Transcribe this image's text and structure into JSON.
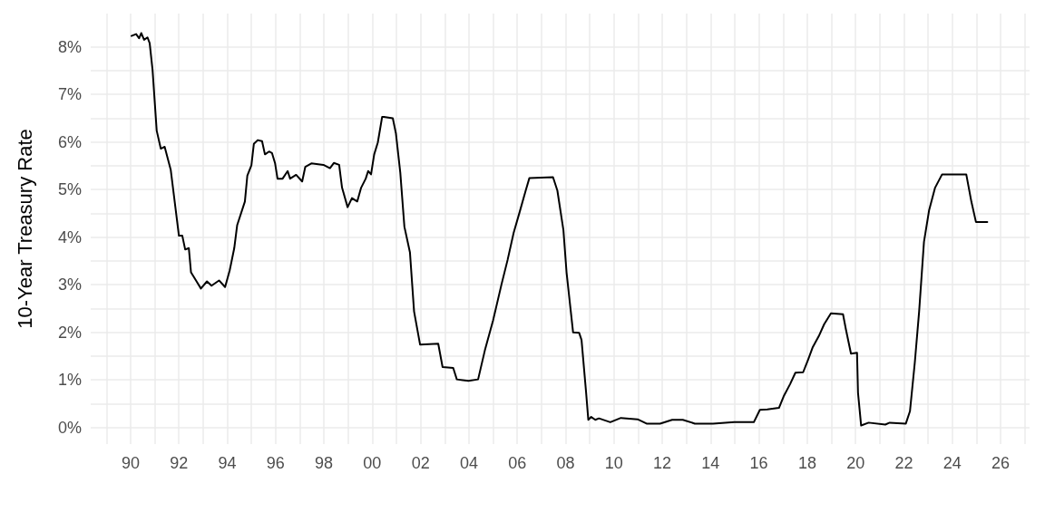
{
  "chart_data": {
    "type": "line",
    "ylabel": "10-Year Treasury Rate",
    "grid": true,
    "marker": "none",
    "line_style": "solid",
    "xlim": [
      1988.35,
      2027.2
    ],
    "ylim": [
      -0.35,
      8.7
    ],
    "xticks": [
      {
        "value": 1989,
        "label": null
      },
      {
        "value": 1990,
        "label": "90"
      },
      {
        "value": 1991,
        "label": null
      },
      {
        "value": 1992,
        "label": "92"
      },
      {
        "value": 1993,
        "label": null
      },
      {
        "value": 1994,
        "label": "94"
      },
      {
        "value": 1995,
        "label": null
      },
      {
        "value": 1996,
        "label": "96"
      },
      {
        "value": 1997,
        "label": null
      },
      {
        "value": 1998,
        "label": "98"
      },
      {
        "value": 1999,
        "label": null
      },
      {
        "value": 2000,
        "label": "00"
      },
      {
        "value": 2001,
        "label": null
      },
      {
        "value": 2002,
        "label": "02"
      },
      {
        "value": 2003,
        "label": null
      },
      {
        "value": 2004,
        "label": "04"
      },
      {
        "value": 2005,
        "label": null
      },
      {
        "value": 2006,
        "label": "06"
      },
      {
        "value": 2007,
        "label": null
      },
      {
        "value": 2008,
        "label": "08"
      },
      {
        "value": 2009,
        "label": null
      },
      {
        "value": 2010,
        "label": "10"
      },
      {
        "value": 2011,
        "label": null
      },
      {
        "value": 2012,
        "label": "12"
      },
      {
        "value": 2013,
        "label": null
      },
      {
        "value": 2014,
        "label": "14"
      },
      {
        "value": 2015,
        "label": null
      },
      {
        "value": 2016,
        "label": "16"
      },
      {
        "value": 2017,
        "label": null
      },
      {
        "value": 2018,
        "label": "18"
      },
      {
        "value": 2019,
        "label": null
      },
      {
        "value": 2020,
        "label": "20"
      },
      {
        "value": 2021,
        "label": null
      },
      {
        "value": 2022,
        "label": "22"
      },
      {
        "value": 2023,
        "label": null
      },
      {
        "value": 2024,
        "label": "24"
      },
      {
        "value": 2025,
        "label": null
      },
      {
        "value": 2026,
        "label": "26"
      },
      {
        "value": 2027,
        "label": null
      }
    ],
    "yticks": [
      {
        "value": 0,
        "label": "0%"
      },
      {
        "value": 0.5,
        "label": null
      },
      {
        "value": 1,
        "label": "1%"
      },
      {
        "value": 1.5,
        "label": null
      },
      {
        "value": 2,
        "label": "2%"
      },
      {
        "value": 2.5,
        "label": null
      },
      {
        "value": 3,
        "label": "3%"
      },
      {
        "value": 3.5,
        "label": null
      },
      {
        "value": 4,
        "label": "4%"
      },
      {
        "value": 4.5,
        "label": null
      },
      {
        "value": 5,
        "label": "5%"
      },
      {
        "value": 5.5,
        "label": null
      },
      {
        "value": 6,
        "label": "6%"
      },
      {
        "value": 6.5,
        "label": null
      },
      {
        "value": 7,
        "label": "7%"
      },
      {
        "value": 7.5,
        "label": null
      },
      {
        "value": 8,
        "label": "8%"
      }
    ],
    "series": [
      {
        "color": "#000000",
        "x": [
          1990.04,
          1990.23,
          1990.35,
          1990.44,
          1990.56,
          1990.7,
          1990.79,
          1990.91,
          1991.08,
          1991.25,
          1991.41,
          1991.66,
          1992.0,
          1992.14,
          1992.26,
          1992.41,
          1992.5,
          1992.73,
          1992.91,
          1993.16,
          1993.35,
          1993.66,
          1993.91,
          1994.1,
          1994.29,
          1994.41,
          1994.73,
          1994.83,
          1995.0,
          1995.1,
          1995.26,
          1995.44,
          1995.56,
          1995.73,
          1995.85,
          1995.98,
          1996.08,
          1996.29,
          1996.5,
          1996.6,
          1996.85,
          1997.1,
          1997.23,
          1997.48,
          1997.98,
          1998.25,
          1998.41,
          1998.63,
          1998.75,
          1998.98,
          1999.16,
          1999.38,
          1999.54,
          1999.73,
          1999.83,
          1999.95,
          2000.08,
          2000.23,
          2000.41,
          2000.48,
          2000.85,
          2000.98,
          2001.16,
          2001.33,
          2001.56,
          2001.73,
          2001.98,
          2002.73,
          2002.91,
          2003.35,
          2003.5,
          2003.98,
          2004.38,
          2004.66,
          2005.0,
          2005.35,
          2005.6,
          2005.85,
          2006.1,
          2006.35,
          2006.5,
          2007.48,
          2007.66,
          2007.91,
          2008.04,
          2008.31,
          2008.56,
          2008.66,
          2008.85,
          2008.94,
          2009.06,
          2009.23,
          2009.38,
          2009.85,
          2010.29,
          2010.98,
          2011.35,
          2011.91,
          2012.41,
          2012.85,
          2013.35,
          2014.1,
          2014.98,
          2015.79,
          2016.04,
          2016.35,
          2016.83,
          2017.04,
          2017.29,
          2017.51,
          2017.83,
          2018.04,
          2018.23,
          2018.48,
          2018.7,
          2018.98,
          2019.48,
          2019.6,
          2019.81,
          2020.06,
          2020.1,
          2020.23,
          2020.54,
          2021.23,
          2021.41,
          2022.08,
          2022.25,
          2022.45,
          2022.63,
          2022.83,
          2023.04,
          2023.29,
          2023.58,
          2024.58,
          2024.79,
          2024.98,
          2025.45
        ],
        "values": [
          8.23,
          8.27,
          8.18,
          8.29,
          8.15,
          8.2,
          8.08,
          7.51,
          6.24,
          5.86,
          5.9,
          5.42,
          4.03,
          4.03,
          3.74,
          3.77,
          3.26,
          3.07,
          2.92,
          3.07,
          2.98,
          3.09,
          2.95,
          3.3,
          3.77,
          4.25,
          4.75,
          5.29,
          5.51,
          5.96,
          6.04,
          6.02,
          5.74,
          5.8,
          5.77,
          5.55,
          5.23,
          5.23,
          5.39,
          5.23,
          5.31,
          5.17,
          5.48,
          5.55,
          5.52,
          5.45,
          5.56,
          5.52,
          5.04,
          4.63,
          4.82,
          4.75,
          5.04,
          5.23,
          5.39,
          5.32,
          5.74,
          5.99,
          6.53,
          6.53,
          6.5,
          6.18,
          5.36,
          4.22,
          3.68,
          2.44,
          1.74,
          1.76,
          1.27,
          1.25,
          1.01,
          0.98,
          1.01,
          1.62,
          2.25,
          3.01,
          3.52,
          4.09,
          4.53,
          4.98,
          5.24,
          5.26,
          4.98,
          4.15,
          3.26,
          2.0,
          1.99,
          1.84,
          0.73,
          0.16,
          0.22,
          0.16,
          0.19,
          0.11,
          0.2,
          0.17,
          0.08,
          0.08,
          0.16,
          0.16,
          0.08,
          0.08,
          0.11,
          0.11,
          0.37,
          0.38,
          0.41,
          0.67,
          0.91,
          1.15,
          1.16,
          1.43,
          1.69,
          1.92,
          2.17,
          2.4,
          2.38,
          2.06,
          1.55,
          1.57,
          0.73,
          0.04,
          0.1,
          0.06,
          0.1,
          0.08,
          0.34,
          1.36,
          2.44,
          3.9,
          4.56,
          5.04,
          5.32,
          5.32,
          4.75,
          4.32,
          4.32
        ]
      }
    ]
  }
}
